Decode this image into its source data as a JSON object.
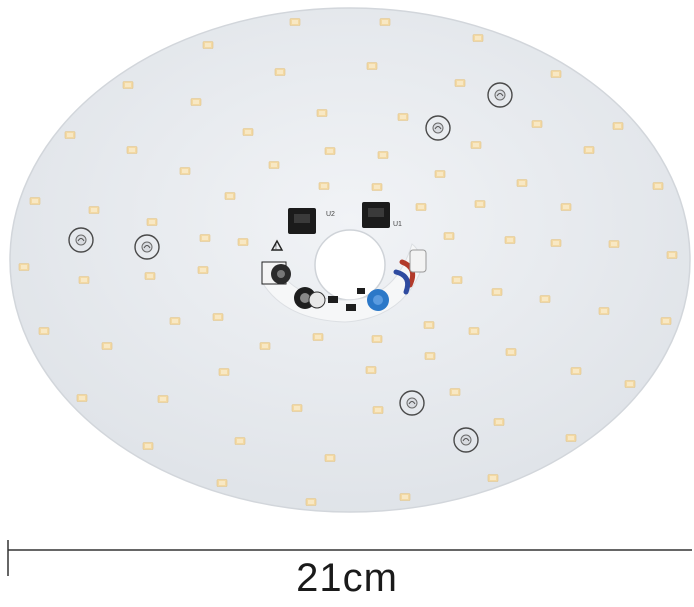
{
  "product": {
    "name": "led-ceiling-module-board",
    "colors": {
      "board": "#e7eaee",
      "board_edge": "#d4d8dd",
      "led": "#f3d9a3",
      "led_core": "#f8e8c4",
      "chip": "#1b1b1b",
      "dimension_line": "#333333",
      "capacitor": "#2b78c8",
      "wire_red": "#b23a2a",
      "wire_blue": "#2f4ba0"
    }
  },
  "dimension": {
    "label": "21cm"
  }
}
